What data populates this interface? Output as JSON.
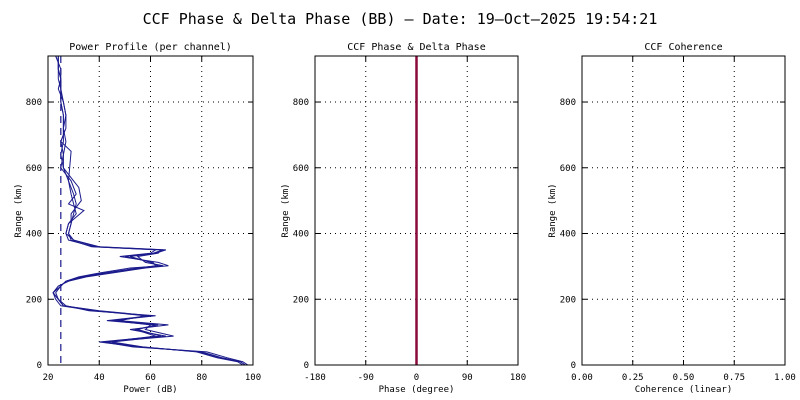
{
  "title": "CCF Phase & Delta Phase (BB) – Date: 19–Oct–2025 19:54:21",
  "chart_data": [
    {
      "type": "line",
      "title": "Power Profile (per channel)",
      "xlabel": "Power (dB)",
      "ylabel": "Range (km)",
      "xlim": [
        20,
        100
      ],
      "ylim": [
        0,
        940
      ],
      "xticks": [
        20,
        40,
        60,
        80,
        100
      ],
      "yticks": [
        0,
        200,
        400,
        600,
        800
      ],
      "grid": "dotted",
      "reference_line": {
        "x": 25,
        "style": "dashed",
        "color": "#1a1a8c"
      },
      "series": [
        {
          "x": [
            97,
            95,
            88,
            80,
            55,
            40,
            64,
            55,
            62,
            43,
            60,
            40,
            26,
            24,
            22,
            25,
            27,
            33,
            42,
            55,
            63,
            60,
            52,
            62,
            66,
            40,
            30,
            28,
            29,
            30,
            31,
            30,
            28,
            26,
            25,
            26,
            26,
            27,
            26,
            25,
            25,
            24,
            24,
            24
          ],
          "y": [
            0,
            10,
            22,
            40,
            55,
            70,
            88,
            108,
            122,
            135,
            150,
            165,
            180,
            200,
            220,
            240,
            255,
            268,
            280,
            295,
            302,
            312,
            330,
            340,
            350,
            360,
            380,
            400,
            430,
            460,
            490,
            520,
            560,
            600,
            640,
            680,
            720,
            760,
            800,
            840,
            870,
            900,
            920,
            940
          ]
        },
        {
          "x": [
            96,
            94,
            86,
            78,
            57,
            45,
            66,
            52,
            67,
            48,
            58,
            38,
            25,
            23,
            22,
            24,
            28,
            35,
            45,
            58,
            67,
            63,
            48,
            60,
            62,
            38,
            28,
            27,
            28,
            34,
            28,
            31,
            29,
            25,
            26,
            27,
            26,
            26,
            25,
            25,
            25,
            24,
            24,
            23
          ],
          "y": [
            0,
            10,
            22,
            40,
            55,
            70,
            88,
            108,
            122,
            135,
            150,
            165,
            180,
            200,
            220,
            240,
            255,
            268,
            280,
            295,
            302,
            312,
            330,
            340,
            350,
            360,
            380,
            400,
            430,
            470,
            490,
            520,
            560,
            600,
            640,
            680,
            720,
            760,
            800,
            840,
            870,
            900,
            920,
            940
          ]
        },
        {
          "x": [
            98,
            96,
            90,
            82,
            53,
            42,
            69,
            58,
            60,
            45,
            62,
            36,
            27,
            24,
            23,
            25,
            27,
            32,
            40,
            52,
            65,
            58,
            55,
            63,
            64,
            37,
            29,
            28,
            29,
            29,
            33,
            32,
            30,
            26,
            26,
            25,
            27,
            27,
            26,
            24,
            25,
            25,
            24,
            24
          ],
          "y": [
            0,
            10,
            22,
            40,
            55,
            70,
            88,
            108,
            122,
            135,
            150,
            165,
            180,
            200,
            220,
            240,
            255,
            268,
            280,
            295,
            302,
            312,
            330,
            340,
            350,
            360,
            380,
            400,
            430,
            460,
            500,
            540,
            560,
            600,
            640,
            680,
            720,
            760,
            800,
            840,
            870,
            900,
            920,
            940
          ]
        },
        {
          "x": [
            97,
            95,
            87,
            79,
            56,
            43,
            62,
            54,
            63,
            47,
            59,
            39,
            26,
            24,
            22,
            24,
            28,
            34,
            43,
            56,
            62,
            61,
            50,
            61,
            65,
            39,
            30,
            27,
            28,
            31,
            30,
            29,
            28,
            29,
            25,
            26,
            26,
            26,
            25,
            25,
            24,
            24,
            24,
            23
          ],
          "y": [
            0,
            10,
            22,
            40,
            55,
            70,
            88,
            108,
            122,
            135,
            150,
            165,
            180,
            200,
            220,
            240,
            255,
            268,
            280,
            295,
            302,
            312,
            330,
            340,
            350,
            360,
            380,
            400,
            430,
            460,
            490,
            520,
            560,
            650,
            680,
            700,
            720,
            760,
            800,
            840,
            870,
            900,
            920,
            940
          ]
        }
      ]
    },
    {
      "type": "line",
      "title": "CCF Phase & Delta Phase",
      "xlabel": "Phase (degree)",
      "ylabel": "Range (km)",
      "xlim": [
        -180,
        180
      ],
      "ylim": [
        0,
        940
      ],
      "xticks": [
        -180,
        -90,
        0,
        90,
        180
      ],
      "yticks": [
        0,
        200,
        400,
        600,
        800
      ],
      "grid": "dotted",
      "series": [
        {
          "color": "#8b0a3c",
          "x": [
            0,
            0
          ],
          "y": [
            0,
            940
          ]
        }
      ]
    },
    {
      "type": "line",
      "title": "CCF Coherence",
      "xlabel": "Coherence (linear)",
      "ylabel": "Range (km)",
      "xlim": [
        0,
        1
      ],
      "ylim": [
        0,
        940
      ],
      "xticks": [
        "0.00",
        "0.25",
        "0.50",
        "0.75",
        "1.00"
      ],
      "xtick_values": [
        0,
        0.25,
        0.5,
        0.75,
        1
      ],
      "yticks": [
        0,
        200,
        400,
        600,
        800
      ],
      "grid": "dotted",
      "series": []
    }
  ],
  "colors": {
    "series": "#1a1a8c",
    "phase": "#8b0a3c",
    "grid": "#000000"
  }
}
